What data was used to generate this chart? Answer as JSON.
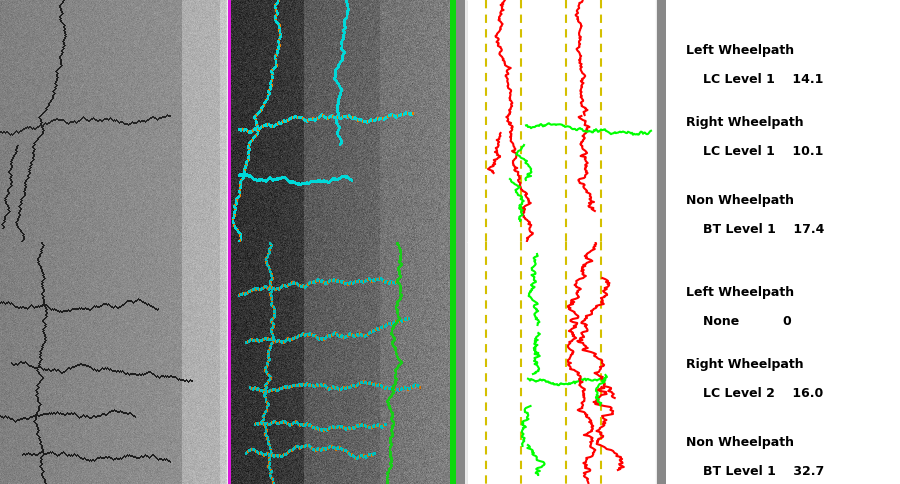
{
  "background_color": "#ffffff",
  "panel_bg": "#e0e0e0",
  "road_bg": "#696969",
  "road_stripe_light": "#888888",
  "road_edge_color": "#909090",
  "dashed_line_color": "#d4c000",
  "text_color": "#000000",
  "figsize": [
    9.0,
    4.84
  ],
  "dpi": 100,
  "info_panels": [
    {
      "sections": [
        {
          "title": "Left Wheelpath",
          "sub": "LC Level 1    14.1"
        },
        {
          "title": "Right Wheelpath",
          "sub": "LC Level 1    10.1"
        },
        {
          "title": "Non Wheelpath",
          "sub": "BT Level 1    17.4"
        }
      ]
    },
    {
      "sections": [
        {
          "title": "Left Wheelpath",
          "sub": "None          0"
        },
        {
          "title": "Right Wheelpath",
          "sub": "LC Level 2    16.0"
        },
        {
          "title": "Non Wheelpath",
          "sub": "BT Level 1    32.7"
        }
      ]
    }
  ]
}
